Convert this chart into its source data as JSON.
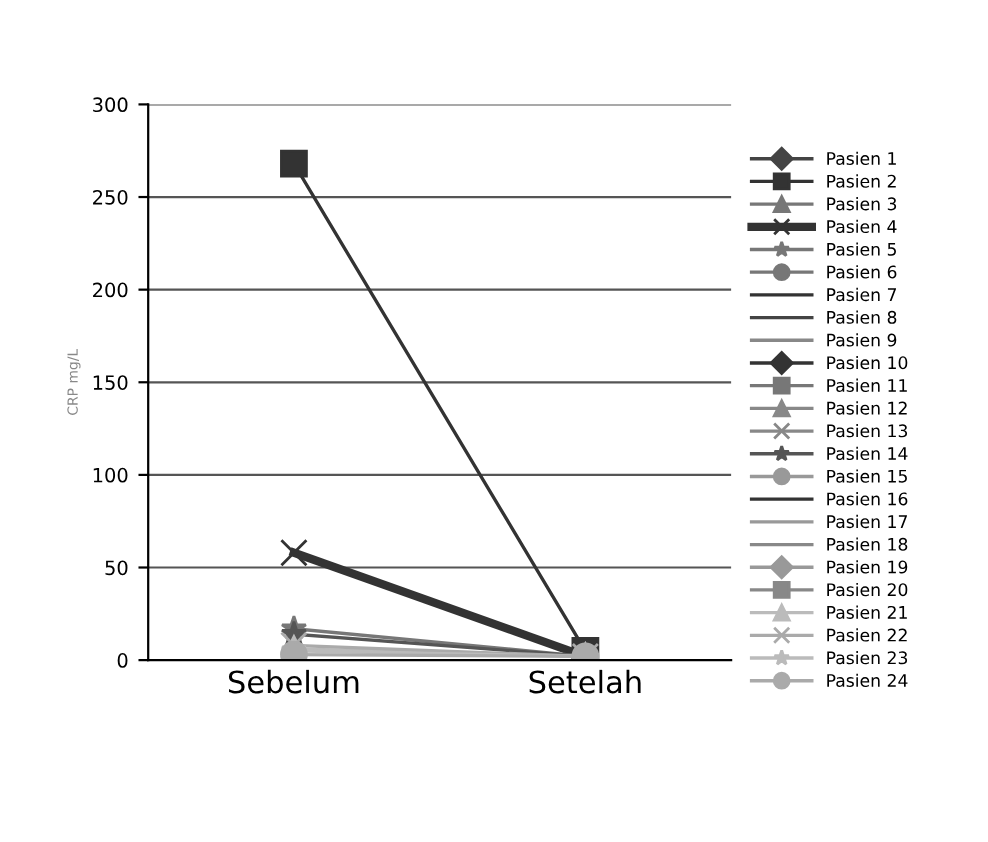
{
  "chart_data": {
    "type": "line",
    "ylabel": "CRP mg/L",
    "categories": [
      "Sebelum",
      "Setelah"
    ],
    "ylim": [
      0,
      300
    ],
    "yticks": [
      0,
      50,
      100,
      150,
      200,
      250,
      300
    ],
    "grid": "y",
    "legend": "right",
    "series": [
      {
        "name": "Pasien 1",
        "color": "#444444",
        "marker": "diamond",
        "values": [
          null,
          null
        ]
      },
      {
        "name": "Pasien 2",
        "color": "#333333",
        "marker": "square",
        "values": [
          268,
          5
        ]
      },
      {
        "name": "Pasien 3",
        "color": "#777777",
        "marker": "triangle",
        "values": [
          null,
          null
        ]
      },
      {
        "name": "Pasien 4",
        "color": "#333333",
        "marker": "cross",
        "values": [
          58,
          2
        ]
      },
      {
        "name": "Pasien 5",
        "color": "#777777",
        "marker": "star",
        "values": [
          17,
          2
        ]
      },
      {
        "name": "Pasien 6",
        "color": "#777777",
        "marker": "circle",
        "values": [
          null,
          null
        ]
      },
      {
        "name": "Pasien 7",
        "color": "#333333",
        "marker": "none",
        "values": [
          null,
          null
        ]
      },
      {
        "name": "Pasien 8",
        "color": "#444444",
        "marker": "none",
        "values": [
          null,
          null
        ]
      },
      {
        "name": "Pasien 9",
        "color": "#888888",
        "marker": "none",
        "values": [
          null,
          null
        ]
      },
      {
        "name": "Pasien 10",
        "color": "#333333",
        "marker": "diamond",
        "values": [
          null,
          null
        ]
      },
      {
        "name": "Pasien 11",
        "color": "#777777",
        "marker": "square",
        "values": [
          null,
          null
        ]
      },
      {
        "name": "Pasien 12",
        "color": "#888888",
        "marker": "triangle",
        "values": [
          null,
          null
        ]
      },
      {
        "name": "Pasien 13",
        "color": "#888888",
        "marker": "cross",
        "values": [
          null,
          null
        ]
      },
      {
        "name": "Pasien 14",
        "color": "#555555",
        "marker": "star",
        "values": [
          14,
          2
        ]
      },
      {
        "name": "Pasien 15",
        "color": "#999999",
        "marker": "circle",
        "values": [
          null,
          null
        ]
      },
      {
        "name": "Pasien 16",
        "color": "#333333",
        "marker": "none",
        "values": [
          null,
          null
        ]
      },
      {
        "name": "Pasien 17",
        "color": "#999999",
        "marker": "none",
        "values": [
          null,
          null
        ]
      },
      {
        "name": "Pasien 18",
        "color": "#888888",
        "marker": "none",
        "values": [
          null,
          null
        ]
      },
      {
        "name": "Pasien 19",
        "color": "#999999",
        "marker": "diamond",
        "values": [
          null,
          null
        ]
      },
      {
        "name": "Pasien 20",
        "color": "#888888",
        "marker": "square",
        "values": [
          null,
          null
        ]
      },
      {
        "name": "Pasien 21",
        "color": "#bbbbbb",
        "marker": "triangle",
        "values": [
          6,
          2
        ]
      },
      {
        "name": "Pasien 22",
        "color": "#aaaaaa",
        "marker": "cross",
        "values": [
          8,
          2
        ]
      },
      {
        "name": "Pasien 23",
        "color": "#bbbbbb",
        "marker": "star",
        "values": [
          5,
          2
        ]
      },
      {
        "name": "Pasien 24",
        "color": "#aaaaaa",
        "marker": "circle",
        "values": [
          3,
          2
        ]
      }
    ]
  }
}
